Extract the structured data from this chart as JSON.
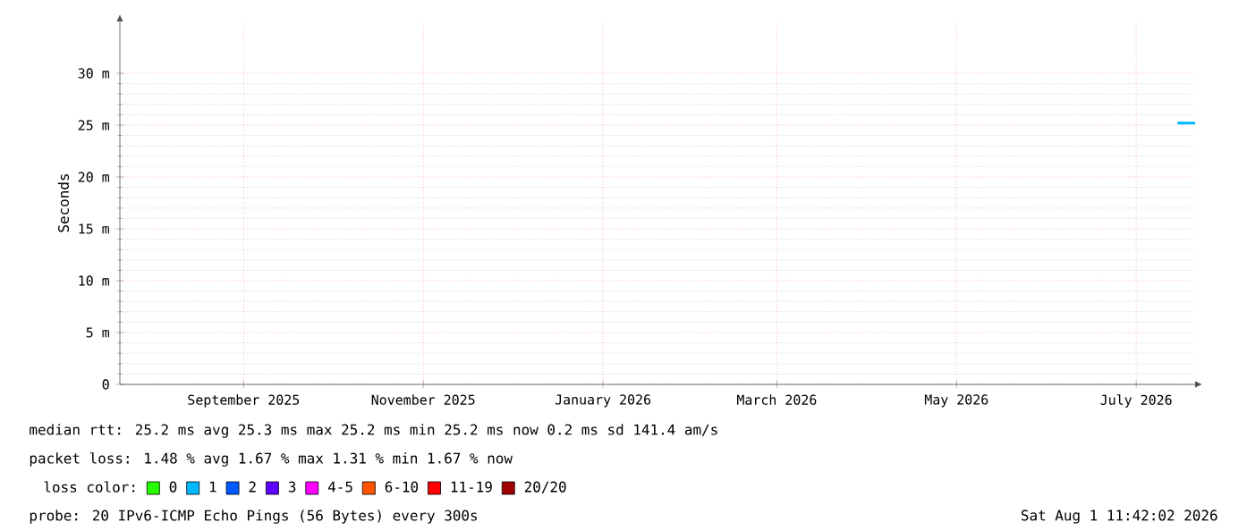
{
  "chart_data": {
    "type": "line",
    "ylabel": "Seconds",
    "xlim": [
      "2025-08-01",
      "2026-08-01"
    ],
    "xticks": [
      {
        "value": "2025-09-12",
        "label": "September 2025"
      },
      {
        "value": "2025-11-12",
        "label": "November 2025"
      },
      {
        "value": "2026-01-12",
        "label": "January 2026"
      },
      {
        "value": "2026-03-12",
        "label": "March 2026"
      },
      {
        "value": "2026-05-12",
        "label": "May 2026"
      },
      {
        "value": "2026-07-12",
        "label": "July 2026"
      }
    ],
    "ylim": [
      0,
      35
    ],
    "yticks": [
      {
        "value": 0,
        "label": "0"
      },
      {
        "value": 5,
        "label": "5 m"
      },
      {
        "value": 10,
        "label": "10 m"
      },
      {
        "value": 15,
        "label": "15 m"
      },
      {
        "value": 20,
        "label": "20 m"
      },
      {
        "value": 25,
        "label": "25 m"
      },
      {
        "value": 30,
        "label": "30 m"
      }
    ],
    "grid": true,
    "legend": "bottom",
    "legend_title": "loss color:",
    "series": [
      {
        "name": "0",
        "color": "#26ff00"
      },
      {
        "name": "1",
        "color": "#00b8ff",
        "x": [
          "2026-07-26",
          "2026-07-29",
          "2026-08-01"
        ],
        "values": [
          25.2,
          25.2,
          25.2
        ]
      },
      {
        "name": "2",
        "color": "#0059ff"
      },
      {
        "name": "3",
        "color": "#5e00ff"
      },
      {
        "name": "4-5",
        "color": "#ff00ff"
      },
      {
        "name": "6-10",
        "color": "#ff5500"
      },
      {
        "name": "11-19",
        "color": "#ff0000"
      },
      {
        "name": "20/20",
        "color": "#a10000"
      }
    ],
    "annotations": [
      "median rtt:  25.2 ms avg  25.3 ms max  25.2 ms min  25.2 ms now  0.2 ms sd  141.4  am/s",
      "packet loss: 1.48 % avg  1.67 % max  1.31 % min  1.67 % now",
      "probe:       20 IPv6-ICMP Echo Pings (56 Bytes) every 300s",
      "Sat Aug  1 11:42:02 2026"
    ]
  }
}
